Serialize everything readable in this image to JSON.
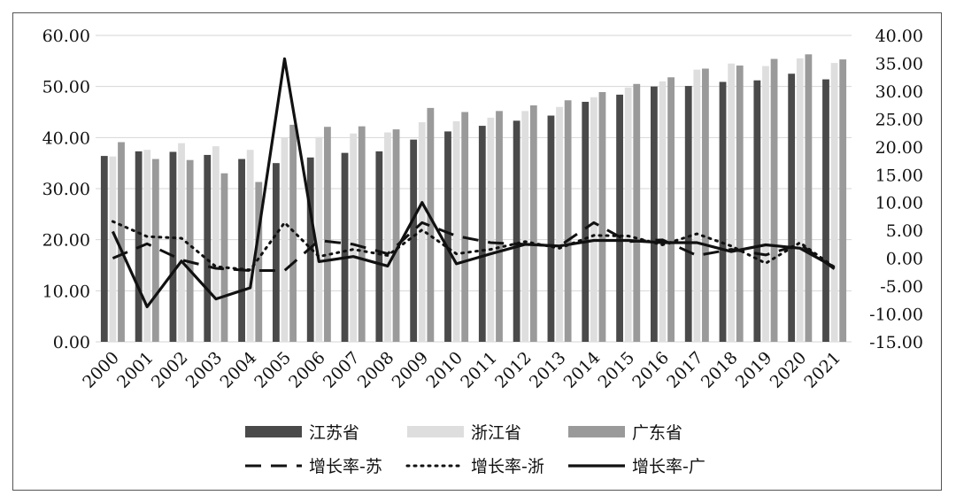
{
  "chart_data": {
    "type": "bar",
    "title": "",
    "xlabel": "",
    "ylabel": "",
    "categories": [
      "2000",
      "2001",
      "2002",
      "2003",
      "2004",
      "2005",
      "2006",
      "2007",
      "2008",
      "2009",
      "2010",
      "2011",
      "2012",
      "2013",
      "2014",
      "2015",
      "2016",
      "2017",
      "2018",
      "2019",
      "2020",
      "2021"
    ],
    "ylim": [
      0,
      60
    ],
    "y_ticks": [
      "0.00",
      "10.00",
      "20.00",
      "30.00",
      "40.00",
      "50.00",
      "60.00"
    ],
    "y2lim": [
      -15,
      40
    ],
    "y2_ticks": [
      "-15.00",
      "-10.00",
      "-5.00",
      "0.00",
      "5.00",
      "10.00",
      "15.00",
      "20.00",
      "25.00",
      "30.00",
      "35.00",
      "40.00"
    ],
    "grid": true,
    "legend_position": "bottom",
    "bar_series": [
      {
        "name": "江苏省",
        "color": "#4a4a4a",
        "values": [
          36.4,
          37.3,
          37.2,
          36.6,
          35.8,
          35.0,
          36.1,
          37.0,
          37.3,
          39.6,
          41.2,
          42.3,
          43.3,
          44.3,
          47.0,
          48.4,
          50.0,
          50.1,
          50.9,
          51.2,
          52.5,
          51.4
        ]
      },
      {
        "name": "浙江省",
        "color": "#dedede",
        "values": [
          36.3,
          37.6,
          38.9,
          38.3,
          37.6,
          40.0,
          40.1,
          40.8,
          41.0,
          43.0,
          43.2,
          43.9,
          45.2,
          46.0,
          47.9,
          49.8,
          51.0,
          53.3,
          54.5,
          54.0,
          55.5,
          54.6
        ]
      },
      {
        "name": "广东省",
        "color": "#9a9a9a",
        "values": [
          39.1,
          35.8,
          35.6,
          33.0,
          31.3,
          42.5,
          42.1,
          42.2,
          41.6,
          45.8,
          45.0,
          45.2,
          46.3,
          47.3,
          48.9,
          50.5,
          51.8,
          53.5,
          54.1,
          55.4,
          56.3,
          55.3
        ]
      }
    ],
    "line_series": [
      {
        "name": "增长率-苏",
        "style": "dashed",
        "color": "#111111",
        "values": [
          0.0,
          2.6,
          -0.3,
          -1.8,
          -2.2,
          -2.2,
          3.2,
          2.5,
          0.8,
          6.4,
          4.0,
          2.8,
          2.5,
          2.2,
          6.4,
          3.0,
          3.3,
          0.5,
          1.6,
          0.6,
          2.5,
          -1.9
        ]
      },
      {
        "name": "增长率-浙",
        "style": "dotted",
        "color": "#111111",
        "values": [
          6.6,
          3.9,
          3.6,
          -1.5,
          -2.1,
          6.4,
          0.3,
          1.6,
          0.5,
          5.1,
          0.8,
          1.6,
          3.0,
          1.8,
          4.1,
          4.0,
          2.4,
          4.4,
          2.2,
          -0.9,
          2.8,
          -1.6
        ]
      },
      {
        "name": "增长率-广",
        "style": "solid",
        "color": "#111111",
        "values": [
          4.8,
          -8.7,
          -0.5,
          -7.3,
          -5.3,
          35.8,
          -0.6,
          0.3,
          -1.4,
          10.0,
          -1.0,
          0.8,
          2.5,
          2.2,
          3.2,
          3.2,
          2.8,
          2.8,
          1.2,
          2.4,
          1.8,
          -1.6
        ]
      }
    ]
  }
}
